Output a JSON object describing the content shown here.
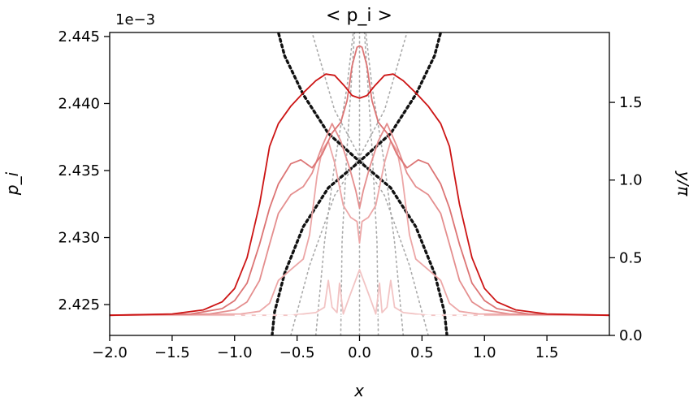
{
  "chart_data": {
    "type": "line",
    "title": "< p_i >",
    "xlabel": "x",
    "ylabel": "p_i",
    "y2label": "y/π",
    "offset_text": "1e−3",
    "xlim": [
      -2.0,
      2.0
    ],
    "ylim": [
      2.4227,
      2.4453
    ],
    "y2lim": [
      0.0,
      1.95
    ],
    "xticks": [
      "−2.0",
      "−1.5",
      "−1.0",
      "−0.5",
      "0.0",
      "0.5",
      "1.0",
      "1.5"
    ],
    "yticks": [
      "2.425",
      "2.430",
      "2.435",
      "2.440",
      "2.445"
    ],
    "y2ticks": [
      "0.0",
      "0.5",
      "1.0",
      "1.5"
    ],
    "grid": false,
    "baseline": 2.4242,
    "series": [
      {
        "color": "#f2c4c4",
        "points": [
          [
            -2,
            2.4242
          ],
          [
            -0.55,
            2.4242
          ],
          [
            -0.45,
            2.4243
          ],
          [
            -0.35,
            2.4244
          ],
          [
            -0.28,
            2.4248
          ],
          [
            -0.25,
            2.4268
          ],
          [
            -0.22,
            2.4248
          ],
          [
            -0.18,
            2.4244
          ],
          [
            -0.16,
            2.4266
          ],
          [
            -0.13,
            2.4243
          ],
          [
            -0.08,
            2.4256
          ],
          [
            0,
            2.4276
          ],
          [
            0.08,
            2.4256
          ],
          [
            0.13,
            2.4243
          ],
          [
            0.16,
            2.4266
          ],
          [
            0.18,
            2.4244
          ],
          [
            0.22,
            2.4248
          ],
          [
            0.25,
            2.4268
          ],
          [
            0.28,
            2.4248
          ],
          [
            0.35,
            2.4244
          ],
          [
            0.45,
            2.4243
          ],
          [
            0.55,
            2.4242
          ],
          [
            2,
            2.4242
          ]
        ]
      },
      {
        "color": "#eca6a6",
        "points": [
          [
            -2,
            2.4242
          ],
          [
            -0.95,
            2.4243
          ],
          [
            -0.8,
            2.4245
          ],
          [
            -0.72,
            2.4251
          ],
          [
            -0.65,
            2.4268
          ],
          [
            -0.55,
            2.4276
          ],
          [
            -0.45,
            2.4284
          ],
          [
            -0.4,
            2.4302
          ],
          [
            -0.34,
            2.4346
          ],
          [
            -0.3,
            2.4365
          ],
          [
            -0.25,
            2.4372
          ],
          [
            -0.2,
            2.4356
          ],
          [
            -0.13,
            2.4324
          ],
          [
            -0.07,
            2.4315
          ],
          [
            -0.02,
            2.4312
          ],
          [
            0,
            2.4296
          ],
          [
            0.02,
            2.4312
          ],
          [
            0.07,
            2.4315
          ],
          [
            0.13,
            2.4324
          ],
          [
            0.2,
            2.4356
          ],
          [
            0.25,
            2.4372
          ],
          [
            0.3,
            2.4365
          ],
          [
            0.34,
            2.4346
          ],
          [
            0.4,
            2.4302
          ],
          [
            0.45,
            2.4284
          ],
          [
            0.55,
            2.4276
          ],
          [
            0.65,
            2.4268
          ],
          [
            0.72,
            2.4251
          ],
          [
            0.8,
            2.4245
          ],
          [
            0.95,
            2.4243
          ],
          [
            2,
            2.4242
          ]
        ]
      },
      {
        "color": "#e48e8e",
        "points": [
          [
            -2,
            2.4242
          ],
          [
            -1.2,
            2.4243
          ],
          [
            -1.0,
            2.4246
          ],
          [
            -0.9,
            2.4252
          ],
          [
            -0.8,
            2.4268
          ],
          [
            -0.72,
            2.4295
          ],
          [
            -0.65,
            2.4318
          ],
          [
            -0.55,
            2.4332
          ],
          [
            -0.45,
            2.4338
          ],
          [
            -0.38,
            2.4348
          ],
          [
            -0.3,
            2.4368
          ],
          [
            -0.22,
            2.4385
          ],
          [
            -0.15,
            2.4372
          ],
          [
            -0.08,
            2.4352
          ],
          [
            -0.03,
            2.4335
          ],
          [
            0,
            2.4322
          ],
          [
            0.03,
            2.4335
          ],
          [
            0.08,
            2.4352
          ],
          [
            0.15,
            2.4372
          ],
          [
            0.22,
            2.4385
          ],
          [
            0.3,
            2.4368
          ],
          [
            0.38,
            2.4348
          ],
          [
            0.45,
            2.4338
          ],
          [
            0.55,
            2.4332
          ],
          [
            0.65,
            2.4318
          ],
          [
            0.72,
            2.4295
          ],
          [
            0.8,
            2.4268
          ],
          [
            0.9,
            2.4252
          ],
          [
            1.0,
            2.4246
          ],
          [
            1.2,
            2.4243
          ],
          [
            2,
            2.4242
          ]
        ]
      },
      {
        "color": "#dc7474",
        "points": [
          [
            -2,
            2.4242
          ],
          [
            -1.35,
            2.4243
          ],
          [
            -1.1,
            2.4247
          ],
          [
            -1.0,
            2.4253
          ],
          [
            -0.9,
            2.4266
          ],
          [
            -0.8,
            2.4295
          ],
          [
            -0.72,
            2.4322
          ],
          [
            -0.65,
            2.434
          ],
          [
            -0.55,
            2.4355
          ],
          [
            -0.47,
            2.4358
          ],
          [
            -0.38,
            2.4352
          ],
          [
            -0.3,
            2.4362
          ],
          [
            -0.22,
            2.4378
          ],
          [
            -0.15,
            2.4386
          ],
          [
            -0.1,
            2.4402
          ],
          [
            -0.06,
            2.4428
          ],
          [
            -0.02,
            2.4442
          ],
          [
            0,
            2.4443
          ],
          [
            0.02,
            2.4442
          ],
          [
            0.06,
            2.4428
          ],
          [
            0.1,
            2.4402
          ],
          [
            0.15,
            2.4386
          ],
          [
            0.22,
            2.4378
          ],
          [
            0.3,
            2.4362
          ],
          [
            0.38,
            2.4352
          ],
          [
            0.47,
            2.4358
          ],
          [
            0.55,
            2.4355
          ],
          [
            0.65,
            2.434
          ],
          [
            0.72,
            2.4322
          ],
          [
            0.8,
            2.4295
          ],
          [
            0.9,
            2.4266
          ],
          [
            1.0,
            2.4253
          ],
          [
            1.1,
            2.4247
          ],
          [
            1.35,
            2.4243
          ],
          [
            2,
            2.4242
          ]
        ]
      },
      {
        "color": "#cc1414",
        "points": [
          [
            -2,
            2.4242
          ],
          [
            -1.5,
            2.4243
          ],
          [
            -1.25,
            2.4246
          ],
          [
            -1.1,
            2.4252
          ],
          [
            -1.0,
            2.4262
          ],
          [
            -0.9,
            2.4285
          ],
          [
            -0.8,
            2.4325
          ],
          [
            -0.72,
            2.4368
          ],
          [
            -0.65,
            2.4385
          ],
          [
            -0.55,
            2.4398
          ],
          [
            -0.45,
            2.4408
          ],
          [
            -0.35,
            2.4417
          ],
          [
            -0.27,
            2.4422
          ],
          [
            -0.2,
            2.4421
          ],
          [
            -0.12,
            2.4413
          ],
          [
            -0.06,
            2.4406
          ],
          [
            0,
            2.4404
          ],
          [
            0.06,
            2.4406
          ],
          [
            0.12,
            2.4413
          ],
          [
            0.2,
            2.4421
          ],
          [
            0.27,
            2.4422
          ],
          [
            0.35,
            2.4417
          ],
          [
            0.45,
            2.4408
          ],
          [
            0.55,
            2.4398
          ],
          [
            0.65,
            2.4385
          ],
          [
            0.72,
            2.4368
          ],
          [
            0.8,
            2.4325
          ],
          [
            0.9,
            2.4285
          ],
          [
            1.0,
            2.4262
          ],
          [
            1.1,
            2.4252
          ],
          [
            1.25,
            2.4246
          ],
          [
            1.5,
            2.4243
          ],
          [
            2,
            2.4242
          ]
        ]
      }
    ],
    "y2_curves": [
      {
        "style": "black-dotted",
        "points": [
          [
            -0.7,
            0.0
          ],
          [
            -0.68,
            0.15
          ],
          [
            -0.6,
            0.4
          ],
          [
            -0.45,
            0.7
          ],
          [
            -0.25,
            0.95
          ],
          [
            0,
            1.12
          ],
          [
            0.25,
            1.3
          ],
          [
            0.45,
            1.55
          ],
          [
            0.6,
            1.8
          ],
          [
            0.65,
            1.95
          ]
        ]
      },
      {
        "style": "black-dotted",
        "points": [
          [
            0.7,
            0.0
          ],
          [
            0.68,
            0.15
          ],
          [
            0.6,
            0.4
          ],
          [
            0.45,
            0.7
          ],
          [
            0.25,
            0.95
          ],
          [
            0,
            1.12
          ],
          [
            -0.25,
            1.3
          ],
          [
            -0.45,
            1.55
          ],
          [
            -0.6,
            1.8
          ],
          [
            -0.65,
            1.95
          ]
        ]
      },
      {
        "style": "gray-dotted",
        "points": [
          [
            -0.55,
            0.0
          ],
          [
            -0.4,
            0.45
          ],
          [
            -0.2,
            0.9
          ],
          [
            0,
            1.15
          ],
          [
            0.2,
            1.45
          ],
          [
            0.38,
            1.95
          ]
        ]
      },
      {
        "style": "gray-dotted",
        "points": [
          [
            0.55,
            0.0
          ],
          [
            0.4,
            0.45
          ],
          [
            0.2,
            0.9
          ],
          [
            0,
            1.15
          ],
          [
            -0.2,
            1.45
          ],
          [
            -0.38,
            1.95
          ]
        ]
      },
      {
        "style": "gray-dotted",
        "points": [
          [
            -0.35,
            0.0
          ],
          [
            -0.28,
            0.6
          ],
          [
            -0.2,
            1.1
          ],
          [
            -0.1,
            1.6
          ],
          [
            -0.05,
            1.95
          ]
        ]
      },
      {
        "style": "gray-dotted",
        "points": [
          [
            0.35,
            0.0
          ],
          [
            0.28,
            0.6
          ],
          [
            0.2,
            1.1
          ],
          [
            0.1,
            1.6
          ],
          [
            0.05,
            1.95
          ]
        ]
      },
      {
        "style": "gray-dotted",
        "points": [
          [
            -0.15,
            0.0
          ],
          [
            -0.14,
            0.6
          ],
          [
            -0.1,
            1.2
          ],
          [
            -0.04,
            1.95
          ]
        ]
      },
      {
        "style": "gray-dotted",
        "points": [
          [
            0.15,
            0.0
          ],
          [
            0.14,
            0.6
          ],
          [
            0.1,
            1.2
          ],
          [
            0.04,
            1.95
          ]
        ]
      },
      {
        "style": "gray-dotted",
        "points": [
          [
            0,
            0.0
          ],
          [
            0,
            1.95
          ]
        ]
      },
      {
        "style": "white-dashed",
        "points": [
          [
            -2,
            0.13
          ],
          [
            2,
            0.13
          ]
        ]
      }
    ],
    "colors": {
      "axis": "#000000",
      "black_dotted": "#111111",
      "gray_dotted": "#aaaaaa",
      "white_dashed": "#ffffff"
    }
  }
}
